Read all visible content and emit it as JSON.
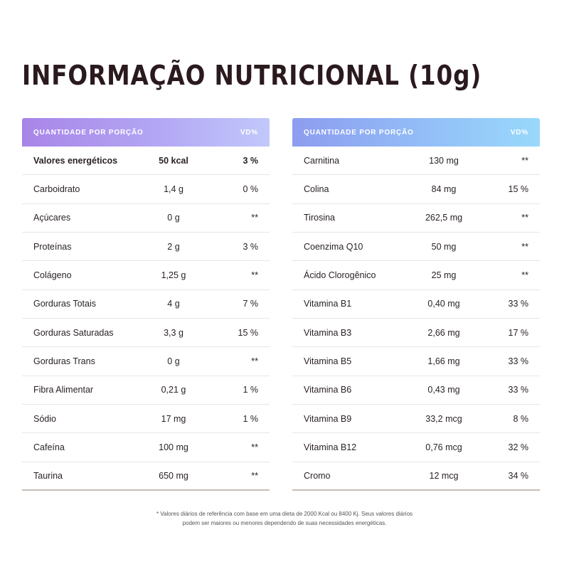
{
  "title": "INFORMAÇÃO NUTRICIONAL (10g)",
  "tables": [
    {
      "header": {
        "label": "QUANTIDADE POR PORÇÃO",
        "vd": "VD%"
      },
      "rows": [
        {
          "name": "Valores energéticos",
          "amount": "50 kcal",
          "vd": "3 %",
          "bold": true
        },
        {
          "name": "Carboidrato",
          "amount": "1,4 g",
          "vd": "0 %"
        },
        {
          "name": "Açúcares",
          "amount": "0 g",
          "vd": "**"
        },
        {
          "name": "Proteínas",
          "amount": "2 g",
          "vd": "3 %"
        },
        {
          "name": "Colágeno",
          "amount": "1,25 g",
          "vd": "**"
        },
        {
          "name": "Gorduras Totais",
          "amount": "4 g",
          "vd": "7 %"
        },
        {
          "name": "Gorduras Saturadas",
          "amount": "3,3 g",
          "vd": "15 %"
        },
        {
          "name": "Gorduras Trans",
          "amount": "0 g",
          "vd": "**"
        },
        {
          "name": "Fibra Alimentar",
          "amount": "0,21 g",
          "vd": "1 %"
        },
        {
          "name": "Sódio",
          "amount": "17 mg",
          "vd": "1 %"
        },
        {
          "name": "Cafeína",
          "amount": "100 mg",
          "vd": "**"
        },
        {
          "name": "Taurina",
          "amount": "650 mg",
          "vd": "**"
        }
      ]
    },
    {
      "header": {
        "label": "QUANTIDADE POR PORÇÃO",
        "vd": "VD%"
      },
      "rows": [
        {
          "name": "Carnitina",
          "amount": "130 mg",
          "vd": "**"
        },
        {
          "name": "Colina",
          "amount": "84 mg",
          "vd": "15 %"
        },
        {
          "name": "Tirosina",
          "amount": "262,5 mg",
          "vd": "**"
        },
        {
          "name": "Coenzima Q10",
          "amount": "50 mg",
          "vd": "**"
        },
        {
          "name": "Ácido Clorogênico",
          "amount": "25 mg",
          "vd": "**"
        },
        {
          "name": "Vitamina B1",
          "amount": "0,40 mg",
          "vd": "33 %"
        },
        {
          "name": "Vitamina B3",
          "amount": "2,66 mg",
          "vd": "17 %"
        },
        {
          "name": "Vitamina B5",
          "amount": "1,66 mg",
          "vd": "33 %"
        },
        {
          "name": "Vitamina B6",
          "amount": "0,43 mg",
          "vd": "33 %"
        },
        {
          "name": "Vitamina B9",
          "amount": "33,2 mcg",
          "vd": "8 %"
        },
        {
          "name": "Vitamina B12",
          "amount": "0,76 mcg",
          "vd": "32 %"
        },
        {
          "name": "Cromo",
          "amount": "12 mcg",
          "vd": "34 %"
        }
      ]
    }
  ],
  "footnote": {
    "line1": "* Valores diários de referência com base em uma dieta de 2000 Kcal ou 8400 Kj. Seus valores diários",
    "line2": "podem ser maiores ou menores dependendo de suas necessidades energéticas."
  }
}
